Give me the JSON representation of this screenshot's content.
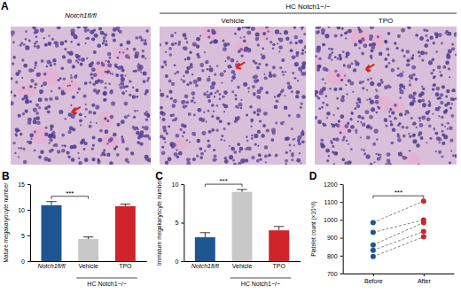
{
  "figure": {
    "panel_labels": [
      "A",
      "B",
      "C",
      "D"
    ],
    "panel_a": {
      "images": [
        "Notch1fl/fl",
        "Vehicle",
        "TPO"
      ],
      "group_label": "HC Notch1−/−",
      "group_images": [
        "Vehicle",
        "TPO"
      ]
    }
  },
  "chart_data": [
    {
      "type": "bar",
      "y_label": "Mature megakaryocyte number",
      "categories": [
        "Notch1fl/fl",
        "Vehicle",
        "TPO"
      ],
      "values": [
        10.9,
        4.3,
        10.7
      ],
      "errors": [
        0.7,
        0.4,
        0.4
      ],
      "colors": [
        "#1f5591",
        "#c8c8c8",
        "#d0242b"
      ],
      "ylim": [
        0,
        15
      ],
      "yticks": [
        0,
        5,
        10,
        15
      ],
      "category_group": {
        "label": "HC Notch1−/−",
        "categories": [
          "Vehicle",
          "TPO"
        ]
      },
      "annotations": [
        {
          "text": "***",
          "between": [
            "Notch1fl/fl",
            "Vehicle"
          ]
        }
      ]
    },
    {
      "type": "bar",
      "y_label": "Immature megakaryocyte number",
      "categories": [
        "Notch1fl/fl",
        "Vehicle",
        "TPO"
      ],
      "values": [
        3.1,
        9.0,
        4.0
      ],
      "errors": [
        0.6,
        0.3,
        0.5
      ],
      "colors": [
        "#1f5591",
        "#c8c8c8",
        "#d0242b"
      ],
      "ylim": [
        0,
        10
      ],
      "yticks": [
        0,
        5,
        10
      ],
      "category_group": {
        "label": "HC Notch1−/−",
        "categories": [
          "Vehicle",
          "TPO"
        ]
      },
      "annotations": [
        {
          "text": "***",
          "between": [
            "Notch1fl/fl",
            "Vehicle"
          ]
        }
      ]
    },
    {
      "type": "line",
      "y_label": "Platelet count (×10⁹/l)",
      "categories": [
        "Before",
        "After"
      ],
      "colors": [
        "#1f5591",
        "#d0242b"
      ],
      "marker": "circle",
      "line_style": "dashed",
      "series": [
        {
          "values": [
            985,
            1105
          ]
        },
        {
          "values": [
            930,
            1000
          ]
        },
        {
          "values": [
            860,
            985
          ]
        },
        {
          "values": [
            830,
            935
          ]
        },
        {
          "values": [
            795,
            905
          ]
        }
      ],
      "ylim": [
        700,
        1200
      ],
      "yticks": [
        700,
        800,
        900,
        1000,
        1100,
        1200
      ],
      "annotations": [
        {
          "text": "***",
          "between": [
            "Before",
            "After"
          ]
        }
      ]
    }
  ]
}
